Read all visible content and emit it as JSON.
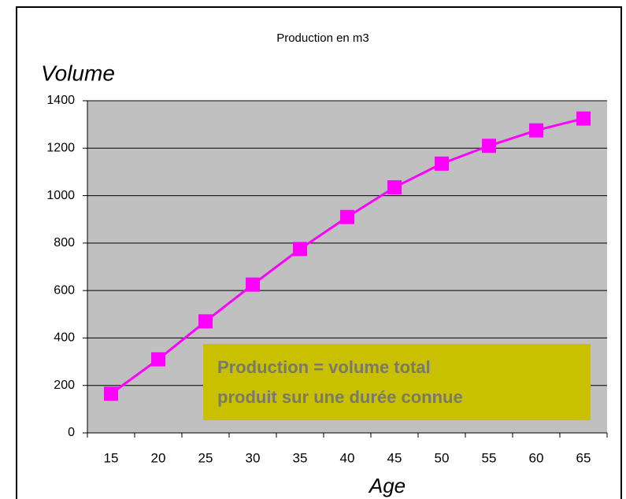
{
  "chart_data": {
    "type": "line",
    "title": "Production en m3",
    "y_label": "Volume",
    "x_label": "Age",
    "categories": [
      "15",
      "20",
      "25",
      "30",
      "35",
      "40",
      "45",
      "50",
      "55",
      "60",
      "65"
    ],
    "values": [
      165,
      310,
      470,
      625,
      775,
      910,
      1035,
      1135,
      1210,
      1275,
      1325
    ],
    "color": "#ff00ff",
    "ylim": [
      0,
      1400
    ],
    "yticks": [
      0,
      200,
      400,
      600,
      800,
      1000,
      1200,
      1400
    ],
    "grid": true,
    "annotation": [
      "Production = volume total",
      "produit sur une durée connue"
    ]
  }
}
